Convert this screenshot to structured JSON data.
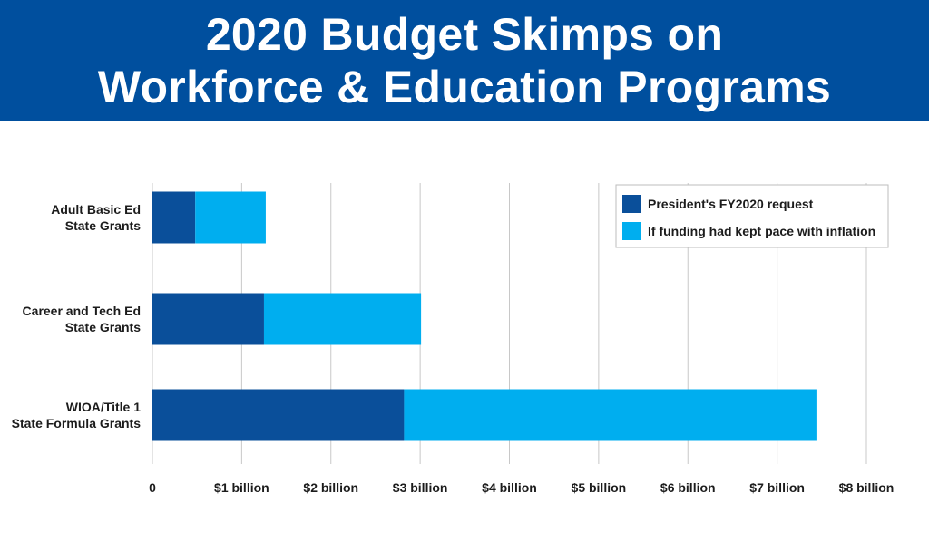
{
  "header": {
    "title_line1": "2020 Budget Skimps on",
    "title_line2": "Workforce & Education Programs"
  },
  "colors": {
    "header_bg": "#004f9e",
    "request": "#0a4f9a",
    "inflation": "#00aeef",
    "grid": "#c8c8c8"
  },
  "chart_data": {
    "type": "bar",
    "orientation": "horizontal",
    "stacked": true,
    "title": "2020 Budget Skimps on Workforce & Education Programs",
    "categories": [
      [
        "Adult Basic Ed",
        "State Grants"
      ],
      [
        "Career and Tech Ed",
        "State Grants"
      ],
      [
        "WIOA/Title 1",
        "State Formula Grants"
      ]
    ],
    "series": [
      {
        "name": "President's FY2020 request",
        "values": [
          0.48,
          1.25,
          2.82
        ],
        "color": "#0a4f9a"
      },
      {
        "name": "If funding had kept pace with inflation",
        "values": [
          0.79,
          1.76,
          4.62
        ],
        "color": "#00aeef"
      }
    ],
    "xlim": [
      0,
      8
    ],
    "xticks": [
      0,
      1,
      2,
      3,
      4,
      5,
      6,
      7,
      8
    ],
    "xtick_labels": [
      "0",
      "$1 billion",
      "$2 billion",
      "$3 billion",
      "$4 billion",
      "$5 billion",
      "$6 billion",
      "$7 billion",
      "$8 billion"
    ],
    "xlabel": "",
    "ylabel": "",
    "grid": "vertical",
    "legend_position": "top-right"
  }
}
